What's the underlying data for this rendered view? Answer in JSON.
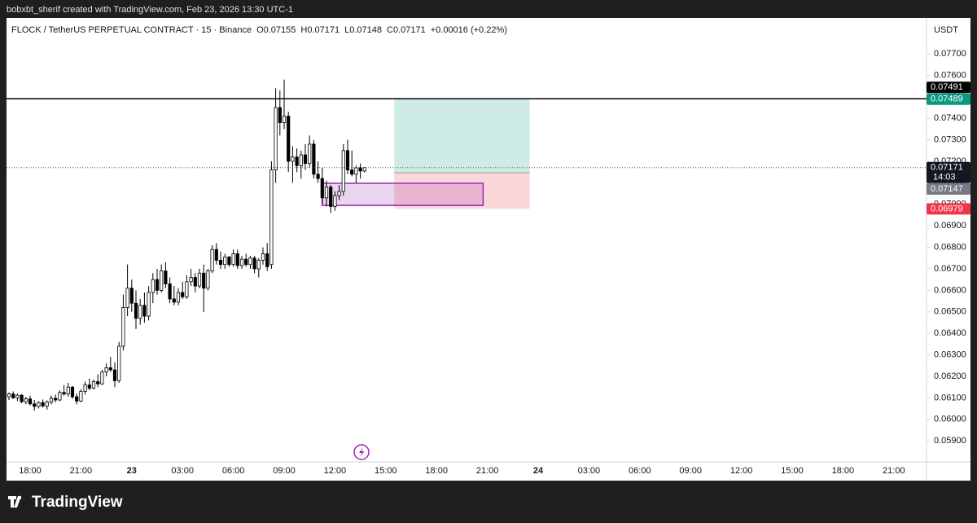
{
  "header": {
    "credit": "bobxbt_sherif created with TradingView.com, Feb 23, 2026 13:30 UTC-1",
    "brand": "TradingView"
  },
  "chart_data": {
    "type": "candlestick",
    "symbol": "FLOCK / TetherUS PERPETUAL CONTRACT · 15 · Binance",
    "ohlc_text": [
      "O0.07155",
      "H0.07171",
      "L0.07148",
      "C0.07171"
    ],
    "change": "+0.00016 (+0.22%)",
    "currency": "USDT",
    "countdown": "14:03",
    "x": [
      "16:45",
      "17:00",
      "17:15",
      "17:30",
      "17:45",
      "18:00",
      "18:15",
      "18:30",
      "18:45",
      "19:00",
      "19:15",
      "19:30",
      "19:45",
      "20:00",
      "20:15",
      "20:30",
      "20:45",
      "21:00",
      "21:15",
      "21:30",
      "21:45",
      "22:00",
      "22:15",
      "22:30",
      "22:45",
      "23:00",
      "23:15",
      "23:30",
      "23:45",
      "00:00",
      "00:15",
      "00:30",
      "00:45",
      "01:00",
      "01:15",
      "01:30",
      "01:45",
      "02:00",
      "02:15",
      "02:30",
      "02:45",
      "03:00",
      "03:15",
      "03:30",
      "03:45",
      "04:00",
      "04:15",
      "04:30",
      "04:45",
      "05:00",
      "05:15",
      "05:30",
      "05:45",
      "06:00",
      "06:15",
      "06:30",
      "06:45",
      "07:00",
      "07:15",
      "07:30",
      "07:45",
      "08:00",
      "08:15",
      "08:30",
      "08:45",
      "09:00",
      "09:15",
      "09:30",
      "09:45",
      "10:00",
      "10:15",
      "10:30",
      "10:45",
      "11:00",
      "11:15",
      "11:30",
      "11:45",
      "12:00",
      "12:15",
      "12:30",
      "12:45",
      "13:00",
      "13:15",
      "13:30",
      "13:45"
    ],
    "open": [
      0.06105,
      0.06118,
      0.061,
      0.06112,
      0.06082,
      0.06095,
      0.06072,
      0.0606,
      0.06078,
      0.06062,
      0.0608,
      0.06098,
      0.0609,
      0.06125,
      0.06118,
      0.0615,
      0.06105,
      0.06085,
      0.0613,
      0.0616,
      0.06145,
      0.06175,
      0.06165,
      0.0622,
      0.0624,
      0.0623,
      0.0618,
      0.0634,
      0.0652,
      0.0661,
      0.0654,
      0.0647,
      0.0653,
      0.0648,
      0.0659,
      0.0665,
      0.066,
      0.0669,
      0.0663,
      0.0656,
      0.06545,
      0.0659,
      0.0657,
      0.0664,
      0.0666,
      0.0662,
      0.0668,
      0.0661,
      0.0669,
      0.0679,
      0.0674,
      0.0672,
      0.06755,
      0.0672,
      0.0677,
      0.06715,
      0.06745,
      0.0672,
      0.0675,
      0.067,
      0.0674,
      0.0677,
      0.0672,
      0.0716,
      0.0745,
      0.0738,
      0.0741,
      0.072,
      0.0722,
      0.0718,
      0.0723,
      0.0719,
      0.0728,
      0.0714,
      0.0712,
      0.0703,
      0.0708,
      0.0699,
      0.0704,
      0.0706,
      0.0725,
      0.0716,
      0.0714,
      0.0717,
      0.07155
    ],
    "high": [
      0.06125,
      0.0613,
      0.0612,
      0.06118,
      0.06105,
      0.0611,
      0.0609,
      0.06085,
      0.06092,
      0.06088,
      0.0611,
      0.06115,
      0.06135,
      0.0616,
      0.0617,
      0.06155,
      0.0612,
      0.0614,
      0.06175,
      0.0619,
      0.06185,
      0.0621,
      0.0623,
      0.0626,
      0.0629,
      0.06265,
      0.0636,
      0.0658,
      0.0672,
      0.0665,
      0.066,
      0.0656,
      0.0659,
      0.0662,
      0.0668,
      0.067,
      0.0672,
      0.0673,
      0.0666,
      0.0662,
      0.0661,
      0.0664,
      0.0667,
      0.067,
      0.0668,
      0.067,
      0.0672,
      0.067,
      0.0681,
      0.0682,
      0.0678,
      0.0677,
      0.0676,
      0.0679,
      0.0679,
      0.0676,
      0.0677,
      0.0676,
      0.0676,
      0.0675,
      0.068,
      0.0682,
      0.072,
      0.0754,
      0.0753,
      0.0758,
      0.0743,
      0.0727,
      0.0726,
      0.0725,
      0.0728,
      0.0732,
      0.073,
      0.072,
      0.0717,
      0.0711,
      0.0709,
      0.0706,
      0.0709,
      0.0728,
      0.073,
      0.0725,
      0.0718,
      0.0719,
      0.07171
    ],
    "low": [
      0.0609,
      0.06095,
      0.06085,
      0.06075,
      0.0607,
      0.06065,
      0.0604,
      0.0605,
      0.06055,
      0.06045,
      0.0607,
      0.0608,
      0.06085,
      0.0611,
      0.06105,
      0.06095,
      0.0607,
      0.0608,
      0.06115,
      0.06135,
      0.0614,
      0.0615,
      0.0616,
      0.062,
      0.0622,
      0.0615,
      0.0617,
      0.0632,
      0.0648,
      0.065,
      0.0642,
      0.0644,
      0.0645,
      0.0646,
      0.0654,
      0.0658,
      0.0659,
      0.0661,
      0.0654,
      0.0653,
      0.0653,
      0.0656,
      0.0656,
      0.0662,
      0.0659,
      0.0661,
      0.065,
      0.066,
      0.0668,
      0.0672,
      0.067,
      0.067,
      0.0671,
      0.0671,
      0.067,
      0.067,
      0.0671,
      0.067,
      0.0668,
      0.0666,
      0.0672,
      0.0669,
      0.067,
      0.071,
      0.0732,
      0.0735,
      0.0715,
      0.071,
      0.0715,
      0.0712,
      0.0716,
      0.0717,
      0.0712,
      0.071,
      0.07,
      0.0699,
      0.0696,
      0.0697,
      0.0702,
      0.0704,
      0.0714,
      0.0713,
      0.071,
      0.0712,
      0.07148
    ],
    "close": [
      0.06118,
      0.061,
      0.06112,
      0.06082,
      0.06095,
      0.06072,
      0.0606,
      0.06078,
      0.06062,
      0.0608,
      0.06098,
      0.0609,
      0.06125,
      0.06118,
      0.0615,
      0.06105,
      0.06085,
      0.0613,
      0.0616,
      0.06145,
      0.06175,
      0.06165,
      0.0622,
      0.0624,
      0.0623,
      0.0618,
      0.0634,
      0.0652,
      0.0661,
      0.0654,
      0.0647,
      0.0653,
      0.0648,
      0.0659,
      0.0665,
      0.066,
      0.0669,
      0.0663,
      0.0656,
      0.06545,
      0.0659,
      0.0657,
      0.0664,
      0.0666,
      0.0662,
      0.0668,
      0.0661,
      0.0669,
      0.0679,
      0.0674,
      0.0672,
      0.06755,
      0.0672,
      0.0677,
      0.06715,
      0.06745,
      0.0672,
      0.0675,
      0.067,
      0.0674,
      0.0677,
      0.0671,
      0.0716,
      0.0745,
      0.0738,
      0.0741,
      0.072,
      0.0722,
      0.0718,
      0.0723,
      0.0719,
      0.0728,
      0.0714,
      0.0712,
      0.0703,
      0.0708,
      0.0699,
      0.0704,
      0.0706,
      0.0725,
      0.0716,
      0.0714,
      0.0717,
      0.07155,
      0.07171
    ],
    "ylim": [
      0.05802,
      0.07867
    ],
    "yticks": [
      {
        "value": 0.077,
        "label": "0.07700"
      },
      {
        "value": 0.076,
        "label": "0.07600"
      },
      {
        "value": 0.075,
        "label": "0.07500"
      },
      {
        "value": 0.074,
        "label": "0.07400"
      },
      {
        "value": 0.073,
        "label": "0.07300"
      },
      {
        "value": 0.072,
        "label": "0.07200"
      },
      {
        "value": 0.071,
        "label": "0.07100"
      },
      {
        "value": 0.07,
        "label": "0.07000"
      },
      {
        "value": 0.069,
        "label": "0.06900"
      },
      {
        "value": 0.068,
        "label": "0.06800"
      },
      {
        "value": 0.067,
        "label": "0.06700"
      },
      {
        "value": 0.066,
        "label": "0.06600"
      },
      {
        "value": 0.065,
        "label": "0.06500"
      },
      {
        "value": 0.064,
        "label": "0.06400"
      },
      {
        "value": 0.063,
        "label": "0.06300"
      },
      {
        "value": 0.062,
        "label": "0.06200"
      },
      {
        "value": 0.061,
        "label": "0.06100"
      },
      {
        "value": 0.06,
        "label": "0.06000"
      },
      {
        "value": 0.059,
        "label": "0.05900"
      }
    ],
    "xticks": [
      {
        "value": "18:00",
        "label": "18:00"
      },
      {
        "value": "21:00",
        "label": "21:00"
      },
      {
        "value": "00:00",
        "label": "23"
      },
      {
        "value": "03:00",
        "label": "03:00"
      },
      {
        "value": "06:00",
        "label": "06:00"
      },
      {
        "value": "09:00",
        "label": "09:00"
      },
      {
        "value": "12:00",
        "label": "12:00"
      },
      {
        "value": "15:00",
        "label": "15:00"
      },
      {
        "value": "18:00",
        "label": "18:00"
      },
      {
        "value": "21:00",
        "label": "21:00"
      },
      {
        "value": "00:00",
        "label": "24"
      },
      {
        "value": "03:00",
        "label": "03:00"
      },
      {
        "value": "06:00",
        "label": "06:00"
      },
      {
        "value": "09:00",
        "label": "09:00"
      },
      {
        "value": "12:00",
        "label": "12:00"
      },
      {
        "value": "15:00",
        "label": "15:00"
      },
      {
        "value": "18:00",
        "label": "18:00"
      },
      {
        "value": "21:00",
        "label": "21:00"
      }
    ],
    "horizontal_line": {
      "value": 0.07491,
      "color": "#000000"
    },
    "position": {
      "start": "15:30",
      "end": "23:30",
      "entry": 0.07147,
      "target": 0.07489,
      "stop": 0.06979
    },
    "rectangle": {
      "start": "11:15",
      "end": "20:45",
      "top": 0.07098,
      "bottom": 0.06995,
      "color": "#9c27b0"
    }
  }
}
